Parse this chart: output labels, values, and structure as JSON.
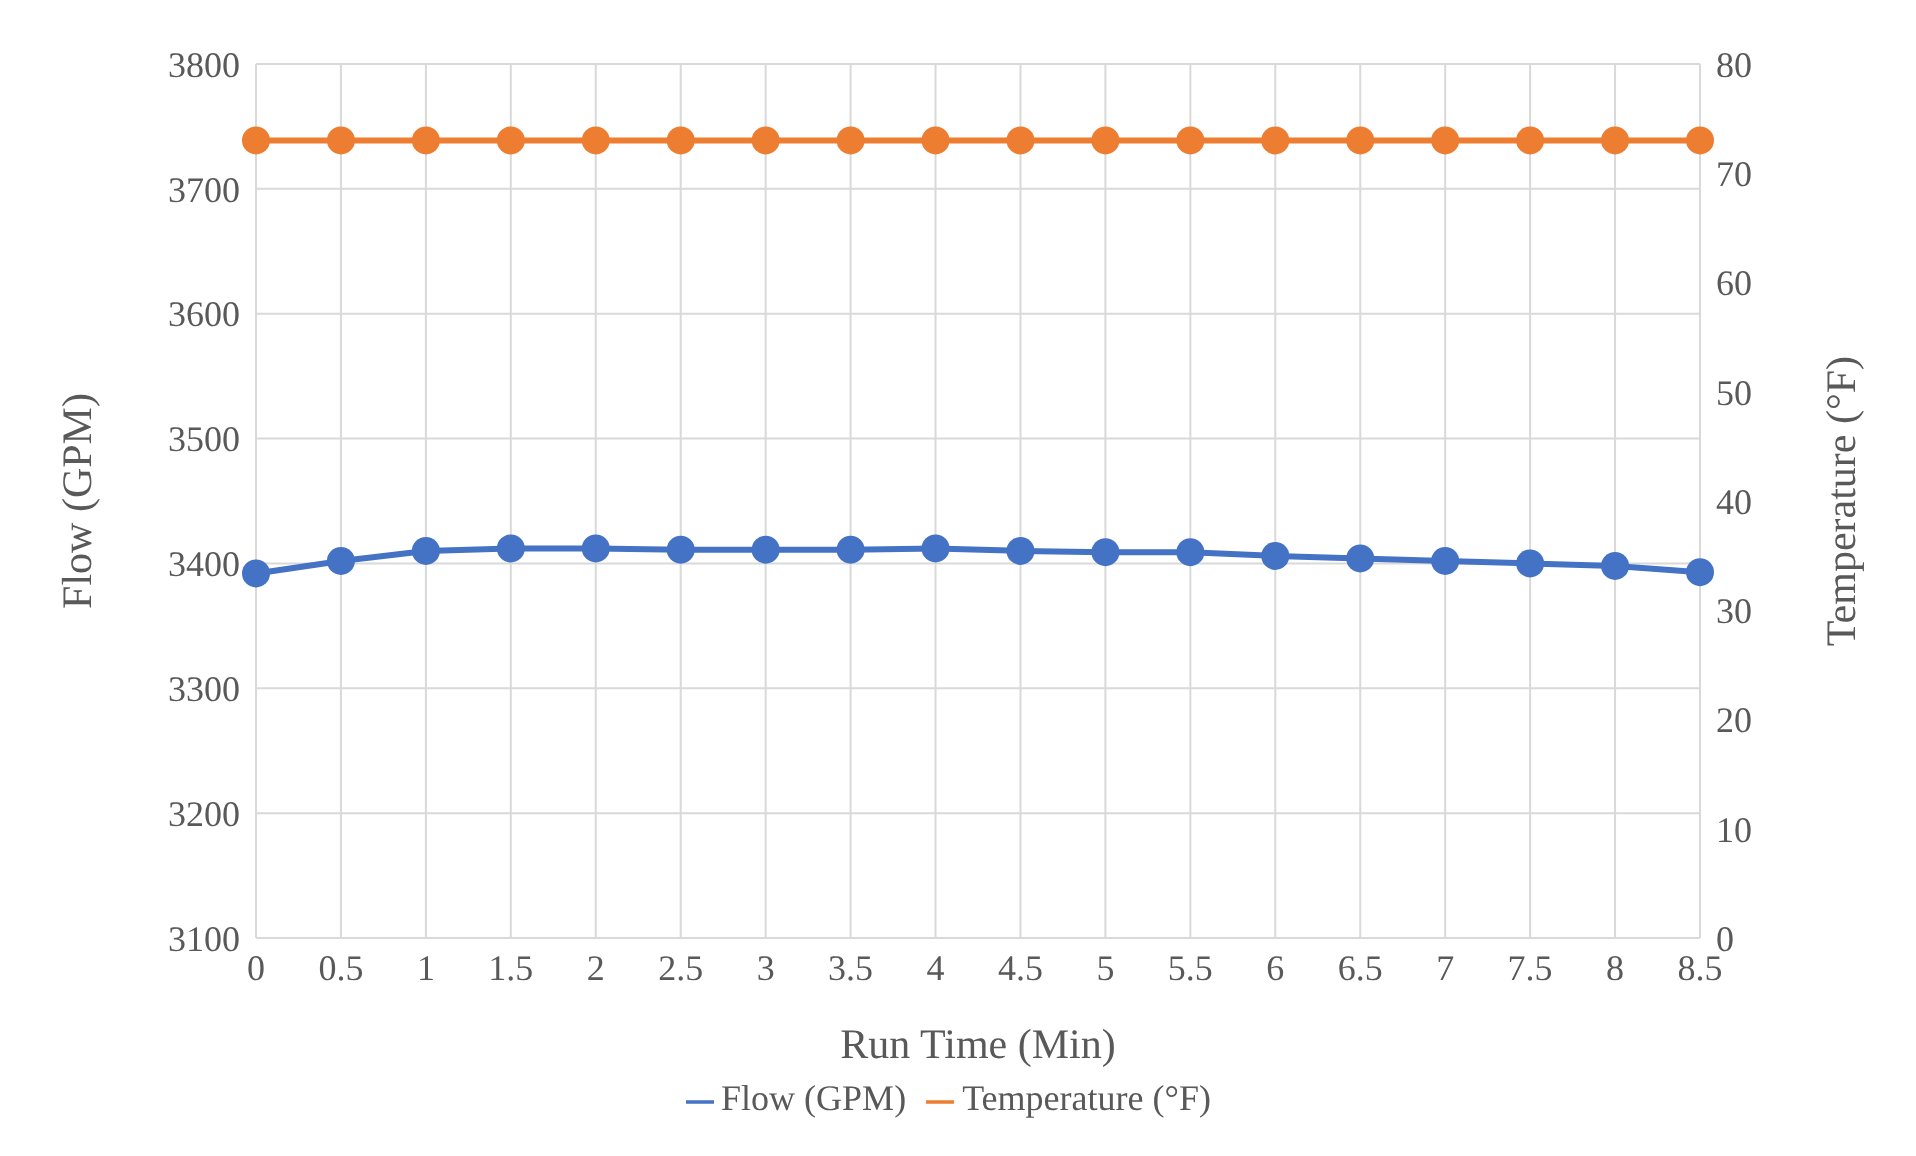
{
  "chart_data": {
    "type": "line",
    "xlabel": "Run Time (Min)",
    "ylabel": "Flow (GPM)",
    "y2label": "Temperature (°F)",
    "categories": [
      "0",
      "0.5",
      "1",
      "1.5",
      "2",
      "2.5",
      "3",
      "3.5",
      "4",
      "4.5",
      "5",
      "5.5",
      "6",
      "6.5",
      "7",
      "7.5",
      "8",
      "8.5"
    ],
    "series": [
      {
        "name": "Flow (GPM)",
        "color": "#4472c4",
        "values": [
          3392,
          3402,
          3410,
          3412,
          3412,
          3411,
          3411,
          3411,
          3412,
          3410,
          3409,
          3409,
          3406,
          3404,
          3402,
          3400,
          3398,
          3393
        ]
      },
      {
        "name": "Temperature (°F)",
        "color": "#ed7d31",
        "axis": "y2",
        "values": [
          73,
          73,
          73,
          73,
          73,
          73,
          73,
          73,
          73,
          73,
          73,
          73,
          73,
          73,
          73,
          73,
          73,
          73
        ]
      }
    ],
    "ylim": [
      3100,
      3800
    ],
    "yticks": [
      3100,
      3200,
      3300,
      3400,
      3500,
      3600,
      3700,
      3800
    ],
    "y2lim": [
      0,
      80
    ],
    "y2ticks": [
      0,
      10,
      20,
      30,
      40,
      50,
      60,
      70,
      80
    ],
    "grid": true,
    "legend": "bottom",
    "marker": "circle",
    "line_style": "solid"
  }
}
